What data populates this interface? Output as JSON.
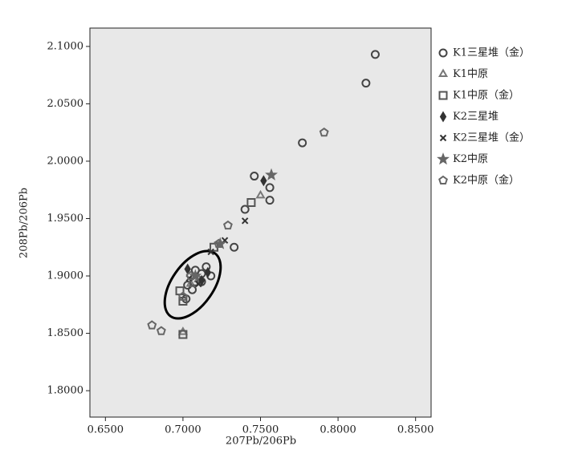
{
  "chart_data": {
    "type": "scatter",
    "x_label": "207Pb/206Pb",
    "y_label": "208Pb/206Pb",
    "xlim": [
      0.64,
      0.86
    ],
    "ylim": [
      1.777,
      2.116
    ],
    "xticks": [
      {
        "value": 0.65,
        "label": "0.6500"
      },
      {
        "value": 0.7,
        "label": "0.7000"
      },
      {
        "value": 0.75,
        "label": "0.7500"
      },
      {
        "value": 0.8,
        "label": "0.8000"
      },
      {
        "value": 0.85,
        "label": "0.8500"
      }
    ],
    "yticks": [
      {
        "value": 1.8,
        "label": "1.8000"
      },
      {
        "value": 1.85,
        "label": "1.8500"
      },
      {
        "value": 1.9,
        "label": "1.9000"
      },
      {
        "value": 1.95,
        "label": "1.9500"
      },
      {
        "value": 2.0,
        "label": "2.0000"
      },
      {
        "value": 2.05,
        "label": "2.0500"
      },
      {
        "value": 2.1,
        "label": "2.1000"
      }
    ],
    "grid": false,
    "legend": "right",
    "series": [
      {
        "name": "K1三星堆（金）",
        "color": "#444444",
        "marker": "circle",
        "x": [
          0.824,
          0.818,
          0.777,
          0.746,
          0.756,
          0.756,
          0.74,
          0.733,
          0.715,
          0.712,
          0.718,
          0.708,
          0.712,
          0.703,
          0.706,
          0.702
        ],
        "values": [
          2.093,
          2.068,
          2.016,
          1.987,
          1.977,
          1.966,
          1.958,
          1.925,
          1.908,
          1.902,
          1.9,
          1.905,
          1.895,
          1.892,
          1.888,
          1.88
        ]
      },
      {
        "name": "K1中原",
        "color": "#777777",
        "marker": "triangle",
        "x": [
          0.75,
          0.7,
          0.71,
          0.705
        ],
        "values": [
          1.97,
          1.851,
          1.897,
          1.893
        ]
      },
      {
        "name": "K1中原（金）",
        "color": "#555555",
        "marker": "square",
        "x": [
          0.744,
          0.7,
          0.72,
          0.698,
          0.7,
          0.707
        ],
        "values": [
          1.964,
          1.849,
          1.925,
          1.887,
          1.878,
          1.895
        ]
      },
      {
        "name": "K2三星堆",
        "color": "#333333",
        "marker": "diamond",
        "x": [
          0.752,
          0.703,
          0.716,
          0.712
        ],
        "values": [
          1.983,
          1.906,
          1.903,
          1.896
        ]
      },
      {
        "name": "K2三星堆（金）",
        "color": "#333333",
        "marker": "x",
        "x": [
          0.74,
          0.727,
          0.718,
          0.704,
          0.71
        ],
        "values": [
          1.948,
          1.931,
          1.921,
          1.898,
          1.893
        ]
      },
      {
        "name": "K2中原",
        "color": "#666666",
        "marker": "star",
        "x": [
          0.757,
          0.724,
          0.708
        ],
        "values": [
          1.988,
          1.928,
          1.9
        ]
      },
      {
        "name": "K2中原（金）",
        "color": "#666666",
        "marker": "pentagon",
        "x": [
          0.791,
          0.729,
          0.68,
          0.686,
          0.7,
          0.723,
          0.705
        ],
        "values": [
          2.025,
          1.944,
          1.857,
          1.852,
          1.882,
          1.928,
          1.9
        ]
      }
    ]
  }
}
